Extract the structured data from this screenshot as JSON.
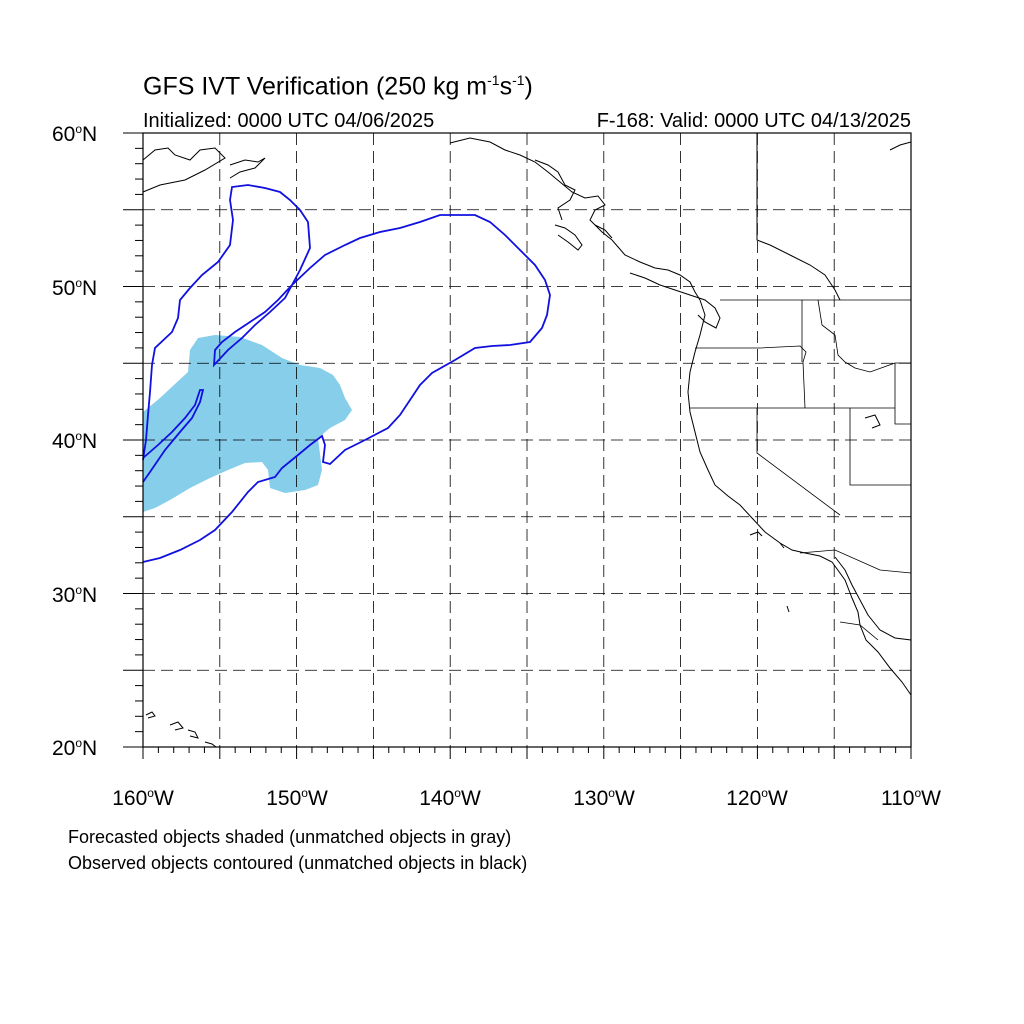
{
  "title_main": "GFS IVT Verification (250 kg m",
  "title_sup1": "-1",
  "title_mid": "s",
  "title_sup2": "-1",
  "title_end": ")",
  "init_text": "Initialized: 0000 UTC 04/06/2025",
  "valid_text": "F-168: Valid: 0000 UTC 04/13/2025",
  "y_labels": [
    {
      "num": "60",
      "deg": "o",
      "hemi": "N"
    },
    {
      "num": "50",
      "deg": "o",
      "hemi": "N"
    },
    {
      "num": "40",
      "deg": "o",
      "hemi": "N"
    },
    {
      "num": "30",
      "deg": "o",
      "hemi": "N"
    },
    {
      "num": "20",
      "deg": "o",
      "hemi": "N"
    }
  ],
  "x_labels": [
    {
      "num": "160",
      "deg": "o",
      "hemi": "W"
    },
    {
      "num": "150",
      "deg": "o",
      "hemi": "W"
    },
    {
      "num": "140",
      "deg": "o",
      "hemi": "W"
    },
    {
      "num": "130",
      "deg": "o",
      "hemi": "W"
    },
    {
      "num": "120",
      "deg": "o",
      "hemi": "W"
    },
    {
      "num": "110",
      "deg": "o",
      "hemi": "W"
    }
  ],
  "note_forecast": "Forecasted objects shaded (unmatched objects in gray)",
  "note_observed": "Observed objects contoured (unmatched objects in black)",
  "colors": {
    "forecast_fill": "#87ceeb",
    "observed_contour": "#1010e0",
    "coast": "#000000",
    "grid": "#000000"
  },
  "map": {
    "projection": "cylindrical-equidistant",
    "lon_range": [
      -160,
      -110
    ],
    "lat_range": [
      20,
      60
    ],
    "grid_lon_step": 5,
    "grid_lat_step": 5
  }
}
